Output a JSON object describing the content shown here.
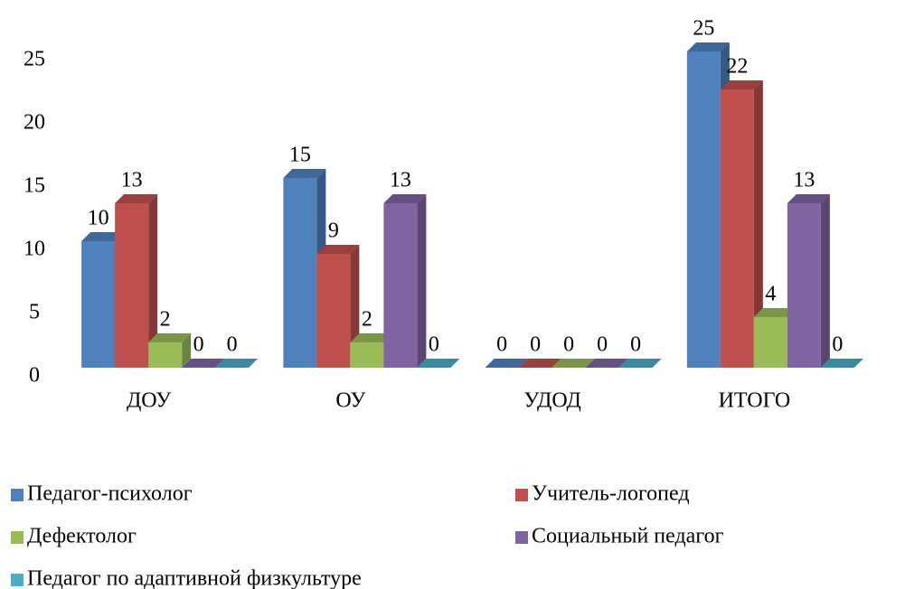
{
  "chart_data": {
    "type": "bar",
    "categories": [
      "ДОУ",
      "ОУ",
      "УДОД",
      "ИТОГО"
    ],
    "series": [
      {
        "name": "Педагог-психолог",
        "color": "#4f81bd",
        "values": [
          10,
          15,
          0,
          25
        ]
      },
      {
        "name": "Учитель-логопед",
        "color": "#c0504d",
        "values": [
          13,
          9,
          0,
          22
        ]
      },
      {
        "name": "Дефектолог",
        "color": "#9bbb59",
        "values": [
          2,
          2,
          0,
          4
        ]
      },
      {
        "name": "Социальный педагог",
        "color": "#8064a2",
        "values": [
          0,
          13,
          0,
          13
        ]
      },
      {
        "name": "Педагог по адаптивной физкультуре",
        "color": "#4bacc6",
        "values": [
          0,
          0,
          0,
          0
        ]
      }
    ],
    "ylim": [
      0,
      25
    ],
    "yticks": [
      0,
      5,
      10,
      15,
      20,
      25
    ],
    "grid": false,
    "legend": "bottom"
  }
}
